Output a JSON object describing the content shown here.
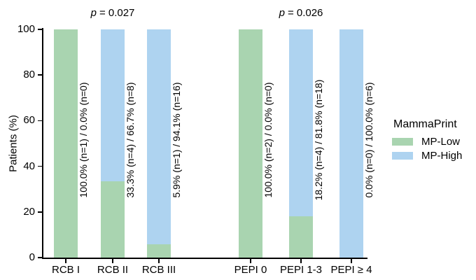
{
  "figure": {
    "background": "#ffffff",
    "axis_color": "#000000",
    "text_color": "#000000"
  },
  "chart_data": {
    "type": "bar",
    "stacked": true,
    "grid": false,
    "ylabel": "Patients (%)",
    "xlabel": "",
    "ylim": [
      0,
      100
    ],
    "yticks": [
      0,
      20,
      40,
      60,
      80,
      100
    ],
    "legend_title": "MammaPrint",
    "legend_position": "right",
    "categories": [
      "RCB I",
      "RCB II",
      "RCB III",
      "PEPI 0",
      "PEPI 1-3",
      "PEPI ≥ 4"
    ],
    "series": [
      {
        "name": "MP-Low",
        "color": "#a9d4b0",
        "values": [
          100.0,
          33.3,
          5.9,
          100.0,
          18.2,
          0.0
        ],
        "counts": [
          1,
          4,
          1,
          2,
          4,
          0
        ]
      },
      {
        "name": "MP-High",
        "color": "#aed3f0",
        "values": [
          0.0,
          66.7,
          94.1,
          0.0,
          81.8,
          100.0
        ],
        "counts": [
          0,
          8,
          16,
          0,
          18,
          6
        ]
      }
    ],
    "bar_labels": [
      "100.0% (n=1) / 0.0% (n=0)",
      "33.3% (n=4) / 66.7% (n=8)",
      "5.9% (n=1) / 94.1% (n=16)",
      "100.0% (n=2) / 0.0% (n=0)",
      "18.2% (n=4) / 81.8% (n=18)",
      "0.0% (n=0) / 100.0% (n=6)"
    ],
    "annotations": [
      {
        "text": "p = 0.027",
        "var": "p",
        "rest": "= 0.027",
        "over_category_index": 1,
        "group": "RCB"
      },
      {
        "text": "p = 0.026",
        "var": "p",
        "rest": "= 0.026",
        "over_category_index": 4,
        "group": "PEPI"
      }
    ]
  }
}
